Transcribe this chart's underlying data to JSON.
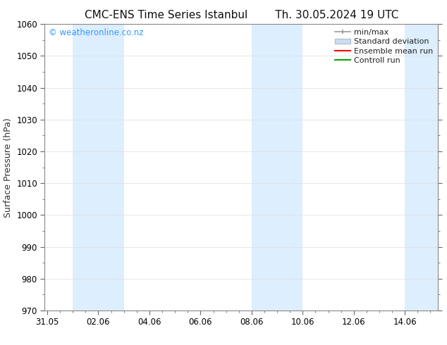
{
  "title_left": "CMC-ENS Time Series Istanbul",
  "title_right": "Th. 30.05.2024 19 UTC",
  "ylabel": "Surface Pressure (hPa)",
  "watermark": "© weatheronline.co.nz",
  "watermark_color": "#3399ff",
  "ylim": [
    970,
    1060
  ],
  "yticks": [
    970,
    980,
    990,
    1000,
    1010,
    1020,
    1030,
    1040,
    1050,
    1060
  ],
  "xtick_labels": [
    "31.05",
    "02.06",
    "04.06",
    "06.06",
    "08.06",
    "10.06",
    "12.06",
    "14.06"
  ],
  "xtick_positions": [
    0,
    2,
    4,
    6,
    8,
    10,
    12,
    14
  ],
  "xmin": -0.1,
  "xmax": 15.3,
  "bg_color": "#ffffff",
  "plot_bg_color": "#ffffff",
  "shaded_regions": [
    {
      "xmin": 1.0,
      "xmax": 3.0,
      "color": "#ddeeff"
    },
    {
      "xmin": 8.0,
      "xmax": 10.0,
      "color": "#ddeeff"
    },
    {
      "xmin": 14.0,
      "xmax": 15.3,
      "color": "#ddeeff"
    }
  ],
  "legend_labels": [
    "min/max",
    "Standard deviation",
    "Ensemble mean run",
    "Controll run"
  ],
  "legend_colors_line": [
    "#aaaaaa",
    "#bbccdd",
    "#ff0000",
    "#00bb00"
  ],
  "title_fontsize": 11,
  "axis_label_fontsize": 9,
  "tick_fontsize": 8.5,
  "legend_fontsize": 8,
  "title_font": "DejaVu Sans"
}
